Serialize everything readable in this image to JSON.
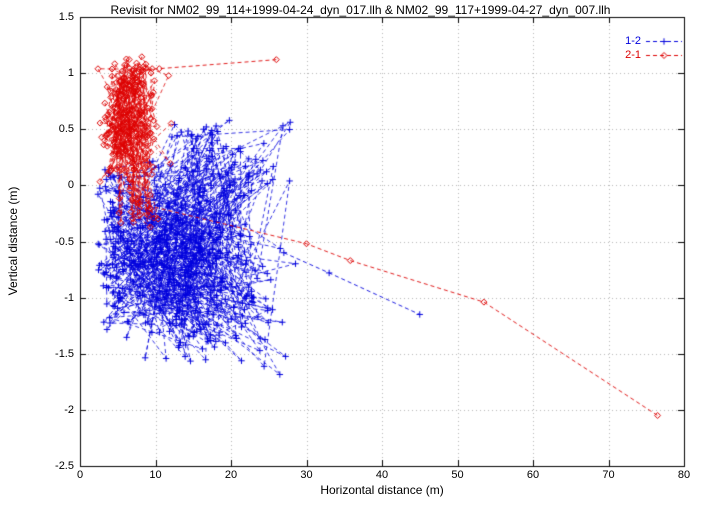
{
  "chart_data": {
    "type": "scatter",
    "title": "Revisit for NM02_99_114+1999-04-24_dyn_017.llh & NM02_99_117+1999-04-27_dyn_007.llh",
    "xlabel": "Horizontal distance (m)",
    "ylabel": "Vertical distance (m)",
    "xlim": [
      0,
      80
    ],
    "ylim": [
      -2.5,
      1.5
    ],
    "xticks": [
      0,
      10,
      20,
      30,
      40,
      50,
      60,
      70,
      80
    ],
    "yticks": [
      -2.5,
      -2,
      -1.5,
      -1,
      -0.5,
      0,
      0.5,
      1,
      1.5
    ],
    "grid": true,
    "grid_color": "#b4b4b4",
    "legend": {
      "position": "top-right"
    },
    "series": [
      {
        "name": "1-2",
        "color": "#0000dd",
        "marker": "plus",
        "linestyle": "dashed",
        "seed": 20,
        "clusters": [
          {
            "count": 330,
            "cx": 13.5,
            "cy": -0.62,
            "sx": 5.2,
            "sy": 0.3,
            "xr": [
              3,
              29
            ],
            "yr": [
              -1.35,
              0.12
            ]
          },
          {
            "count": 85,
            "cx": 19.0,
            "cy": 0.22,
            "sx": 4.6,
            "sy": 0.22,
            "xr": [
              9,
              28.5
            ],
            "yr": [
              -0.1,
              0.58
            ]
          },
          {
            "count": 80,
            "cx": 17.0,
            "cy": -1.25,
            "sx": 4.8,
            "sy": 0.22,
            "xr": [
              6,
              28
            ],
            "yr": [
              -1.75,
              -0.95
            ]
          },
          {
            "count": 65,
            "cx": 4.3,
            "cy": -0.55,
            "sx": 1.1,
            "sy": 0.5,
            "xr": [
              2.2,
              6.5
            ],
            "yr": [
              -1.5,
              0.15
            ]
          }
        ],
        "paths": [
          [
            [
              27,
              -0.6
            ],
            [
              33,
              -0.78
            ],
            [
              45,
              -1.15
            ]
          ]
        ]
      },
      {
        "name": "2-1",
        "color": "#dd0000",
        "marker": "diamond",
        "linestyle": "dashed",
        "seed": 77,
        "clusters": [
          {
            "count": 190,
            "cx": 6.3,
            "cy": 0.52,
            "sx": 1.9,
            "sy": 0.27,
            "xr": [
              2,
              12.5
            ],
            "yr": [
              0.02,
              1.12
            ]
          },
          {
            "count": 45,
            "cx": 6.8,
            "cy": 0.95,
            "sx": 1.6,
            "sy": 0.12,
            "xr": [
              3,
              10
            ],
            "yr": [
              0.75,
              1.17
            ]
          },
          {
            "count": 25,
            "cx": 8.0,
            "cy": -0.2,
            "sx": 1.6,
            "sy": 0.13,
            "xr": [
              4.5,
              11
            ],
            "yr": [
              -0.42,
              0.0
            ]
          }
        ],
        "paths": [
          [
            [
              7,
              1.02
            ],
            [
              10.5,
              1.04
            ],
            [
              26,
              1.12
            ]
          ],
          [
            [
              9,
              -0.18
            ],
            [
              30,
              -0.52
            ],
            [
              35.8,
              -0.67
            ],
            [
              53.5,
              -1.04
            ],
            [
              76.5,
              -2.05
            ]
          ]
        ]
      }
    ]
  }
}
